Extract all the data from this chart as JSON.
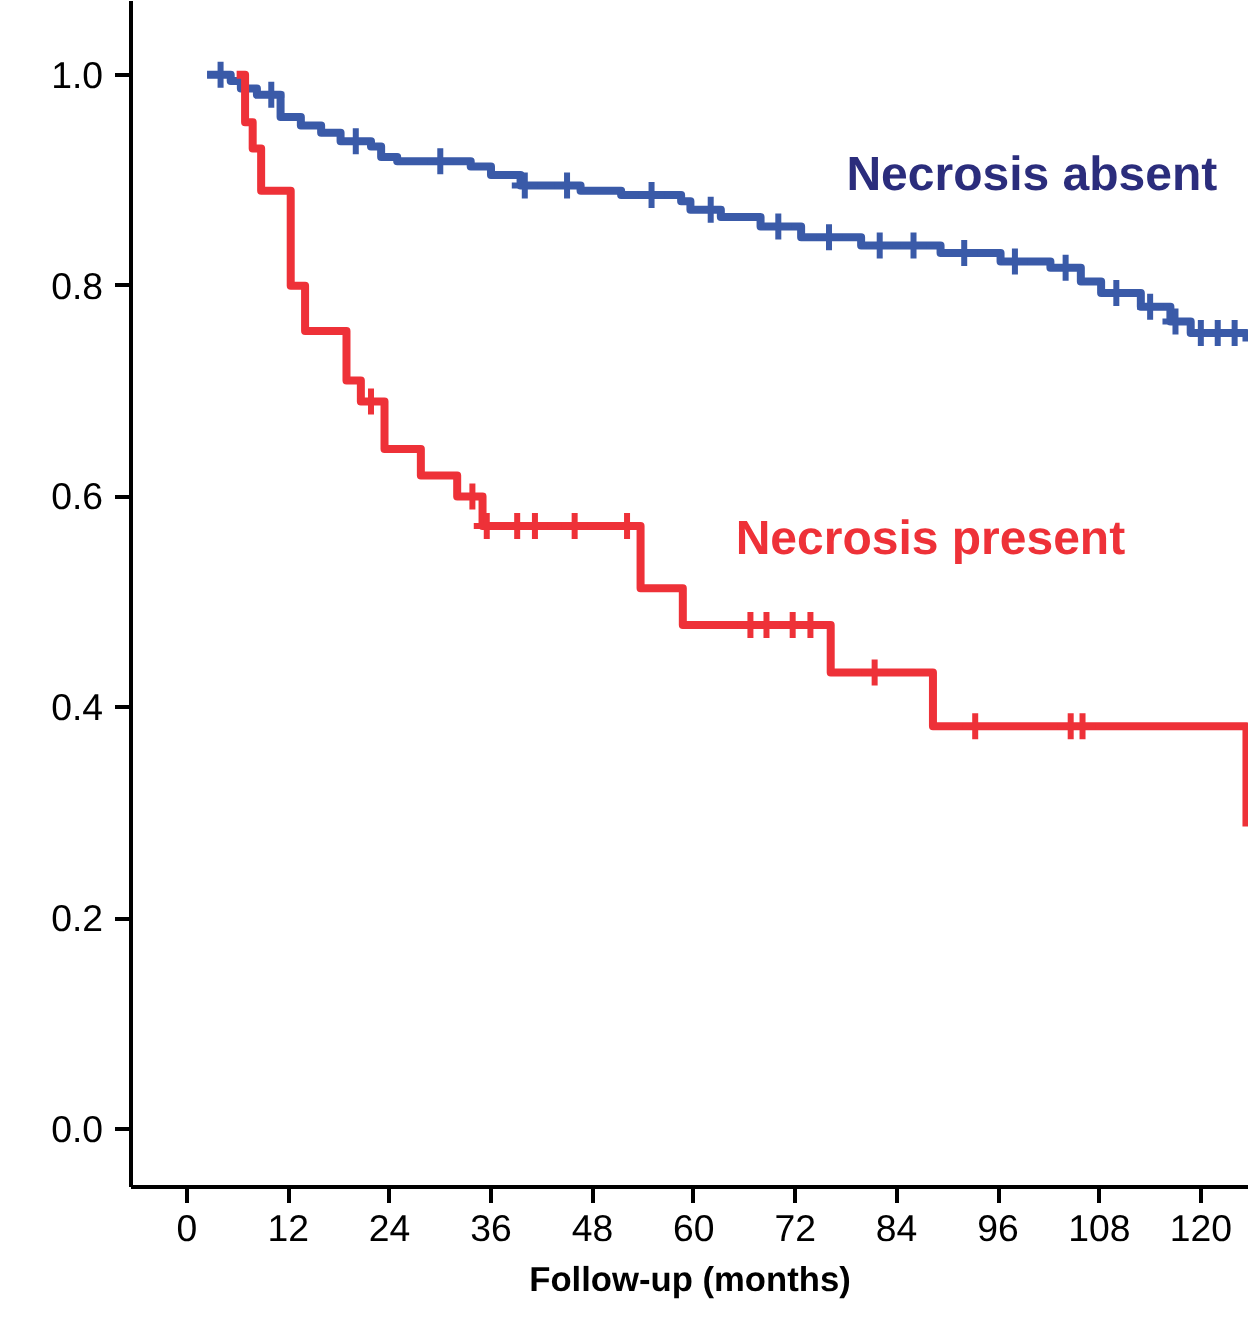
{
  "chart_data": {
    "type": "step",
    "xlabel": "Follow-up (months)",
    "xlim": [
      -6.6,
      125.7
    ],
    "ylim": [
      -0.055,
      1.07
    ],
    "xticks": [
      0,
      12,
      24,
      36,
      48,
      60,
      72,
      84,
      96,
      108,
      120
    ],
    "yticks": [
      {
        "value": 0,
        "label": "0.0"
      },
      {
        "value": 0.2,
        "label": "0.2"
      },
      {
        "value": 0.4,
        "label": "0.4"
      },
      {
        "value": 0.6,
        "label": "0.6"
      },
      {
        "value": 0.8,
        "label": "0.8"
      },
      {
        "value": 1,
        "label": "1.0"
      }
    ],
    "grid": false,
    "legend": false,
    "line_style": "solid",
    "series": [
      {
        "name": "Necrosis absent",
        "color": "#3a5aa8",
        "x": [
          2.4,
          5.2,
          6.4,
          8.3,
          11.1,
          13.5,
          15.9,
          18.2,
          21.8,
          23.0,
          24.9,
          33.6,
          36.0,
          39.5,
          46.6,
          51.4,
          58.5,
          59.6,
          63.2,
          67.9,
          72.7,
          79.8,
          89.2,
          96.3,
          102.2,
          105.8,
          108.2,
          112.9,
          116.4,
          118.8,
          125.4
        ],
        "values": [
          1.0,
          0.994,
          0.987,
          0.981,
          0.96,
          0.952,
          0.945,
          0.937,
          0.932,
          0.922,
          0.918,
          0.913,
          0.905,
          0.895,
          0.89,
          0.886,
          0.88,
          0.872,
          0.865,
          0.856,
          0.846,
          0.838,
          0.831,
          0.823,
          0.817,
          0.804,
          0.793,
          0.78,
          0.766,
          0.755,
          0.747
        ]
      },
      {
        "name": "Necrosis present",
        "color": "#ee3138",
        "x": [
          5.9,
          6.9,
          7.8,
          8.8,
          12.3,
          14.0,
          18.9,
          20.6,
          23.4,
          27.7,
          32.0,
          35.0,
          53.7,
          58.7,
          76.2,
          88.3,
          125.4
        ],
        "values": [
          1.0,
          0.955,
          0.93,
          0.89,
          0.8,
          0.757,
          0.71,
          0.69,
          0.645,
          0.62,
          0.6,
          0.572,
          0.513,
          0.478,
          0.433,
          0.382,
          0.287
        ]
      },
      {
        "color": "#3a5aa8",
        "type": "scatter",
        "marker": "cross",
        "x": [
          4,
          10,
          20,
          30,
          40,
          45,
          55,
          62,
          70,
          76,
          82,
          86,
          92,
          98,
          104,
          110,
          114,
          117,
          120,
          122,
          124
        ],
        "values": [
          1.0,
          0.981,
          0.937,
          0.918,
          0.895,
          0.895,
          0.886,
          0.872,
          0.856,
          0.846,
          0.838,
          0.838,
          0.831,
          0.823,
          0.817,
          0.793,
          0.78,
          0.766,
          0.755,
          0.755,
          0.755
        ]
      },
      {
        "color": "#ee3138",
        "type": "scatter",
        "marker": "cross",
        "x": [
          21.8,
          33.8,
          35.5,
          39.1,
          41.2,
          45.9,
          52.1,
          66.7,
          68.6,
          71.7,
          73.8,
          81.4,
          93.3,
          104.6,
          106.0
        ],
        "values": [
          0.69,
          0.6,
          0.572,
          0.572,
          0.572,
          0.572,
          0.572,
          0.478,
          0.478,
          0.478,
          0.478,
          0.433,
          0.382,
          0.382,
          0.382
        ]
      }
    ]
  }
}
